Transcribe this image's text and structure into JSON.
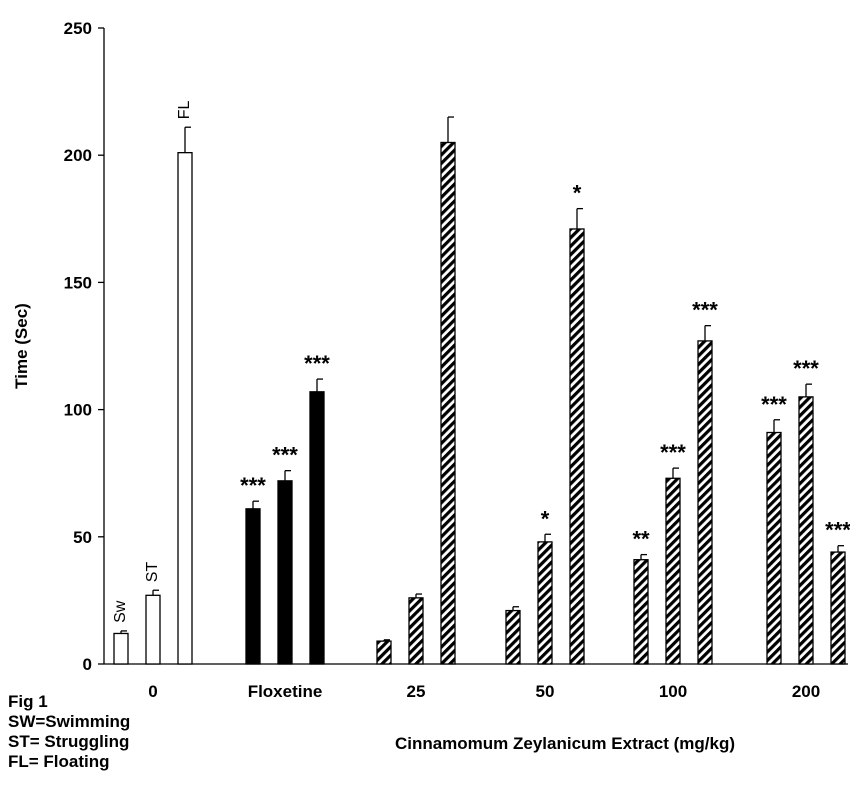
{
  "chart_data": {
    "type": "bar",
    "title": "",
    "ylabel": "Time (Sec)",
    "xlabel": "Cinnamomum Zeylanicum Extract (mg/kg)",
    "ylim": [
      0,
      250
    ],
    "yticks": [
      0,
      50,
      100,
      150,
      200,
      250
    ],
    "categories": [
      "0",
      "Floxetine",
      "25",
      "50",
      "100",
      "200"
    ],
    "series_labels": [
      "Sw",
      "ST",
      "FL"
    ],
    "groups": [
      {
        "category": "0",
        "fill": "white",
        "values": [
          12,
          27,
          201
        ],
        "errors": [
          1,
          2,
          10
        ],
        "stars": [
          "",
          "",
          ""
        ]
      },
      {
        "category": "Floxetine",
        "fill": "black",
        "values": [
          61,
          72,
          107
        ],
        "errors": [
          3,
          4,
          5
        ],
        "stars": [
          "***",
          "***",
          "***"
        ]
      },
      {
        "category": "25",
        "fill": "hatched",
        "values": [
          9,
          26,
          205
        ],
        "errors": [
          0.5,
          1.5,
          10
        ],
        "stars": [
          "",
          "",
          ""
        ]
      },
      {
        "category": "50",
        "fill": "hatched",
        "values": [
          21,
          48,
          171
        ],
        "errors": [
          1.5,
          3,
          8
        ],
        "stars": [
          "",
          "*",
          "*"
        ]
      },
      {
        "category": "100",
        "fill": "hatched",
        "values": [
          41,
          73,
          127
        ],
        "errors": [
          2,
          4,
          6
        ],
        "stars": [
          "**",
          "***",
          "***"
        ]
      },
      {
        "category": "200",
        "fill": "hatched",
        "values": [
          91,
          105,
          44
        ],
        "errors": [
          5,
          5,
          2.5
        ],
        "stars": [
          "***",
          "***",
          "***"
        ]
      }
    ],
    "grid": false,
    "legend": "none"
  },
  "caption": {
    "fig": "Fig 1",
    "sw": "SW=Swimming",
    "st": "ST= Struggling",
    "fl": "FL= Floating"
  }
}
